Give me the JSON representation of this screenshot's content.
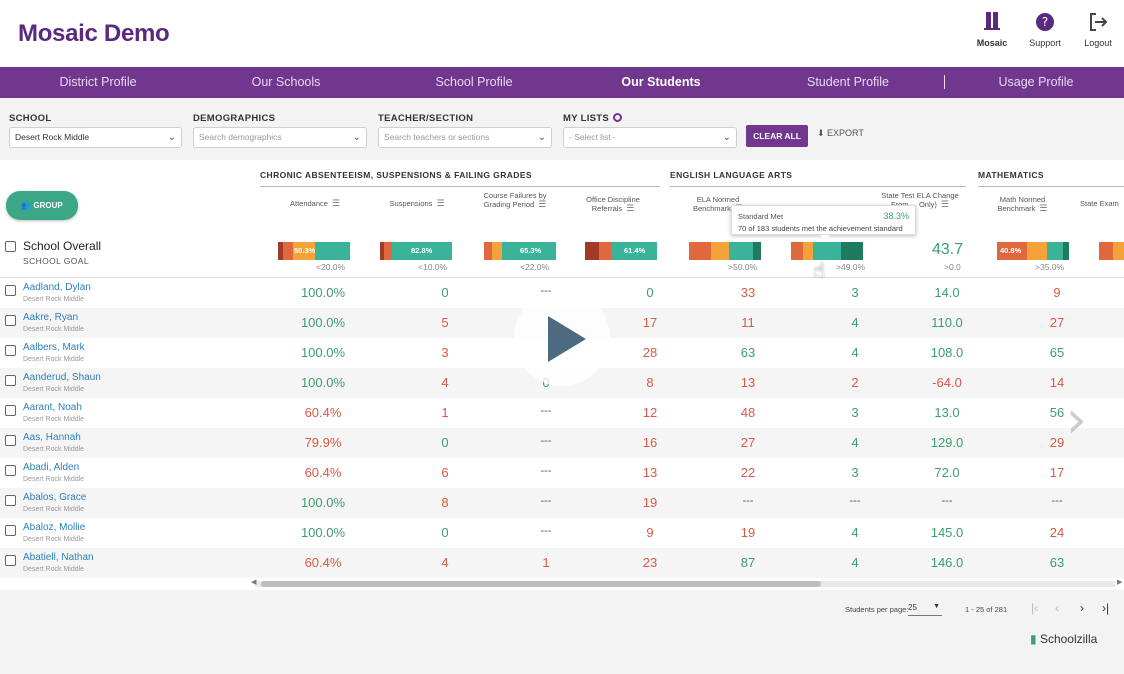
{
  "app": {
    "title": "Mosaic Demo"
  },
  "header_icons": {
    "mosaic": "Mosaic",
    "support": "Support",
    "logout": "Logout"
  },
  "nav": [
    "District Profile",
    "Our Schools",
    "School Profile",
    "Our Students",
    "Student Profile",
    "Usage Profile"
  ],
  "filters": {
    "school_label": "SCHOOL",
    "school_value": "Desert Rock Middle",
    "demographics_label": "DEMOGRAPHICS",
    "demographics_placeholder": "Search demographics",
    "teacher_label": "TEACHER/SECTION",
    "teacher_placeholder": "Search teachers or sections",
    "mylists_label": "MY LISTS",
    "mylists_placeholder": "- Select list -",
    "clear_all": "CLEAR ALL",
    "export": "EXPORT"
  },
  "group_button": "GROUP",
  "categories": {
    "c1": "CHRONIC ABSENTEEISM, SUSPENSIONS & FAILING GRADES",
    "c2": "ENGLISH LANGUAGE ARTS",
    "c3": "MATHEMATICS"
  },
  "columns": {
    "attendance": "Attendance",
    "suspensions": "Suspensions",
    "course_failures": "Course Failures by Grading Period",
    "office_discipline": "Office Discipline Referrals",
    "ela_normed": "ELA Normed Benchmark",
    "state_test_ela": "State Test ELA Change From ... Only)",
    "math_normed": "Math Normed Benchmark",
    "state_exam": "State Exam"
  },
  "overall": {
    "title": "School Overall",
    "goal": "SCHOOL GOAL",
    "bar_labels": [
      "50.3%",
      "82.8%",
      "65.3%",
      "61.4%"
    ],
    "goals": [
      "<20.0%",
      "<10.0%",
      "<22.0%",
      ">50.0%",
      ">49.0%",
      ">0.0",
      ">35.0%"
    ],
    "math_label": "40.8%",
    "ela_change": "43.7"
  },
  "tooltip": {
    "title": "Standard Met",
    "pct": "38.3%",
    "detail": "70 of 183 students met the achievement standard"
  },
  "colors": {
    "purple": "#71378f",
    "green": "#3aa06e",
    "red": "#d95a45"
  },
  "students": [
    {
      "name": "Aadland, Dylan",
      "school": "Desert Rock Middle",
      "att": "100.0%",
      "susp": "0",
      "cf": "---",
      "odr": "0",
      "ela": "33",
      "ste": "3",
      "chg": "14.0",
      "math": "9"
    },
    {
      "name": "Aakre, Ryan",
      "school": "Desert Rock Middle",
      "att": "100.0%",
      "susp": "5",
      "cf": "",
      "odr": "17",
      "ela": "11",
      "ste": "4",
      "chg": "110.0",
      "math": "27"
    },
    {
      "name": "Aalbers, Mark",
      "school": "Desert Rock Middle",
      "att": "100.0%",
      "susp": "3",
      "cf": "",
      "odr": "28",
      "ela": "63",
      "ste": "4",
      "chg": "108.0",
      "math": "65"
    },
    {
      "name": "Aanderud, Shaun",
      "school": "Desert Rock Middle",
      "att": "100.0%",
      "susp": "4",
      "cf": "0",
      "odr": "8",
      "ela": "13",
      "ste": "2",
      "chg": "-64.0",
      "math": "14"
    },
    {
      "name": "Aarant, Noah",
      "school": "Desert Rock Middle",
      "att": "60.4%",
      "susp": "1",
      "cf": "---",
      "odr": "12",
      "ela": "48",
      "ste": "3",
      "chg": "13.0",
      "math": "56"
    },
    {
      "name": "Aas, Hannah",
      "school": "Desert Rock Middle",
      "att": "79.9%",
      "susp": "0",
      "cf": "---",
      "odr": "16",
      "ela": "27",
      "ste": "4",
      "chg": "129.0",
      "math": "29"
    },
    {
      "name": "Abadi, Alden",
      "school": "Desert Rock Middle",
      "att": "60.4%",
      "susp": "6",
      "cf": "---",
      "odr": "13",
      "ela": "22",
      "ste": "3",
      "chg": "72.0",
      "math": "17"
    },
    {
      "name": "Abalos, Grace",
      "school": "Desert Rock Middle",
      "att": "100.0%",
      "susp": "8",
      "cf": "---",
      "odr": "19",
      "ela": "---",
      "ste": "---",
      "chg": "---",
      "math": "---"
    },
    {
      "name": "Abaloz, Mollie",
      "school": "Desert Rock Middle",
      "att": "100.0%",
      "susp": "0",
      "cf": "---",
      "odr": "9",
      "ela": "19",
      "ste": "4",
      "chg": "145.0",
      "math": "24"
    },
    {
      "name": "Abatiell, Nathan",
      "school": "Desert Rock Middle",
      "att": "60.4%",
      "susp": "4",
      "cf": "1",
      "odr": "23",
      "ela": "87",
      "ste": "4",
      "chg": "146.0",
      "math": "63"
    }
  ],
  "pagination": {
    "label": "Students per page:",
    "per_page": "25",
    "range": "1 - 25 of 281"
  },
  "brand": "Schoolzilla"
}
